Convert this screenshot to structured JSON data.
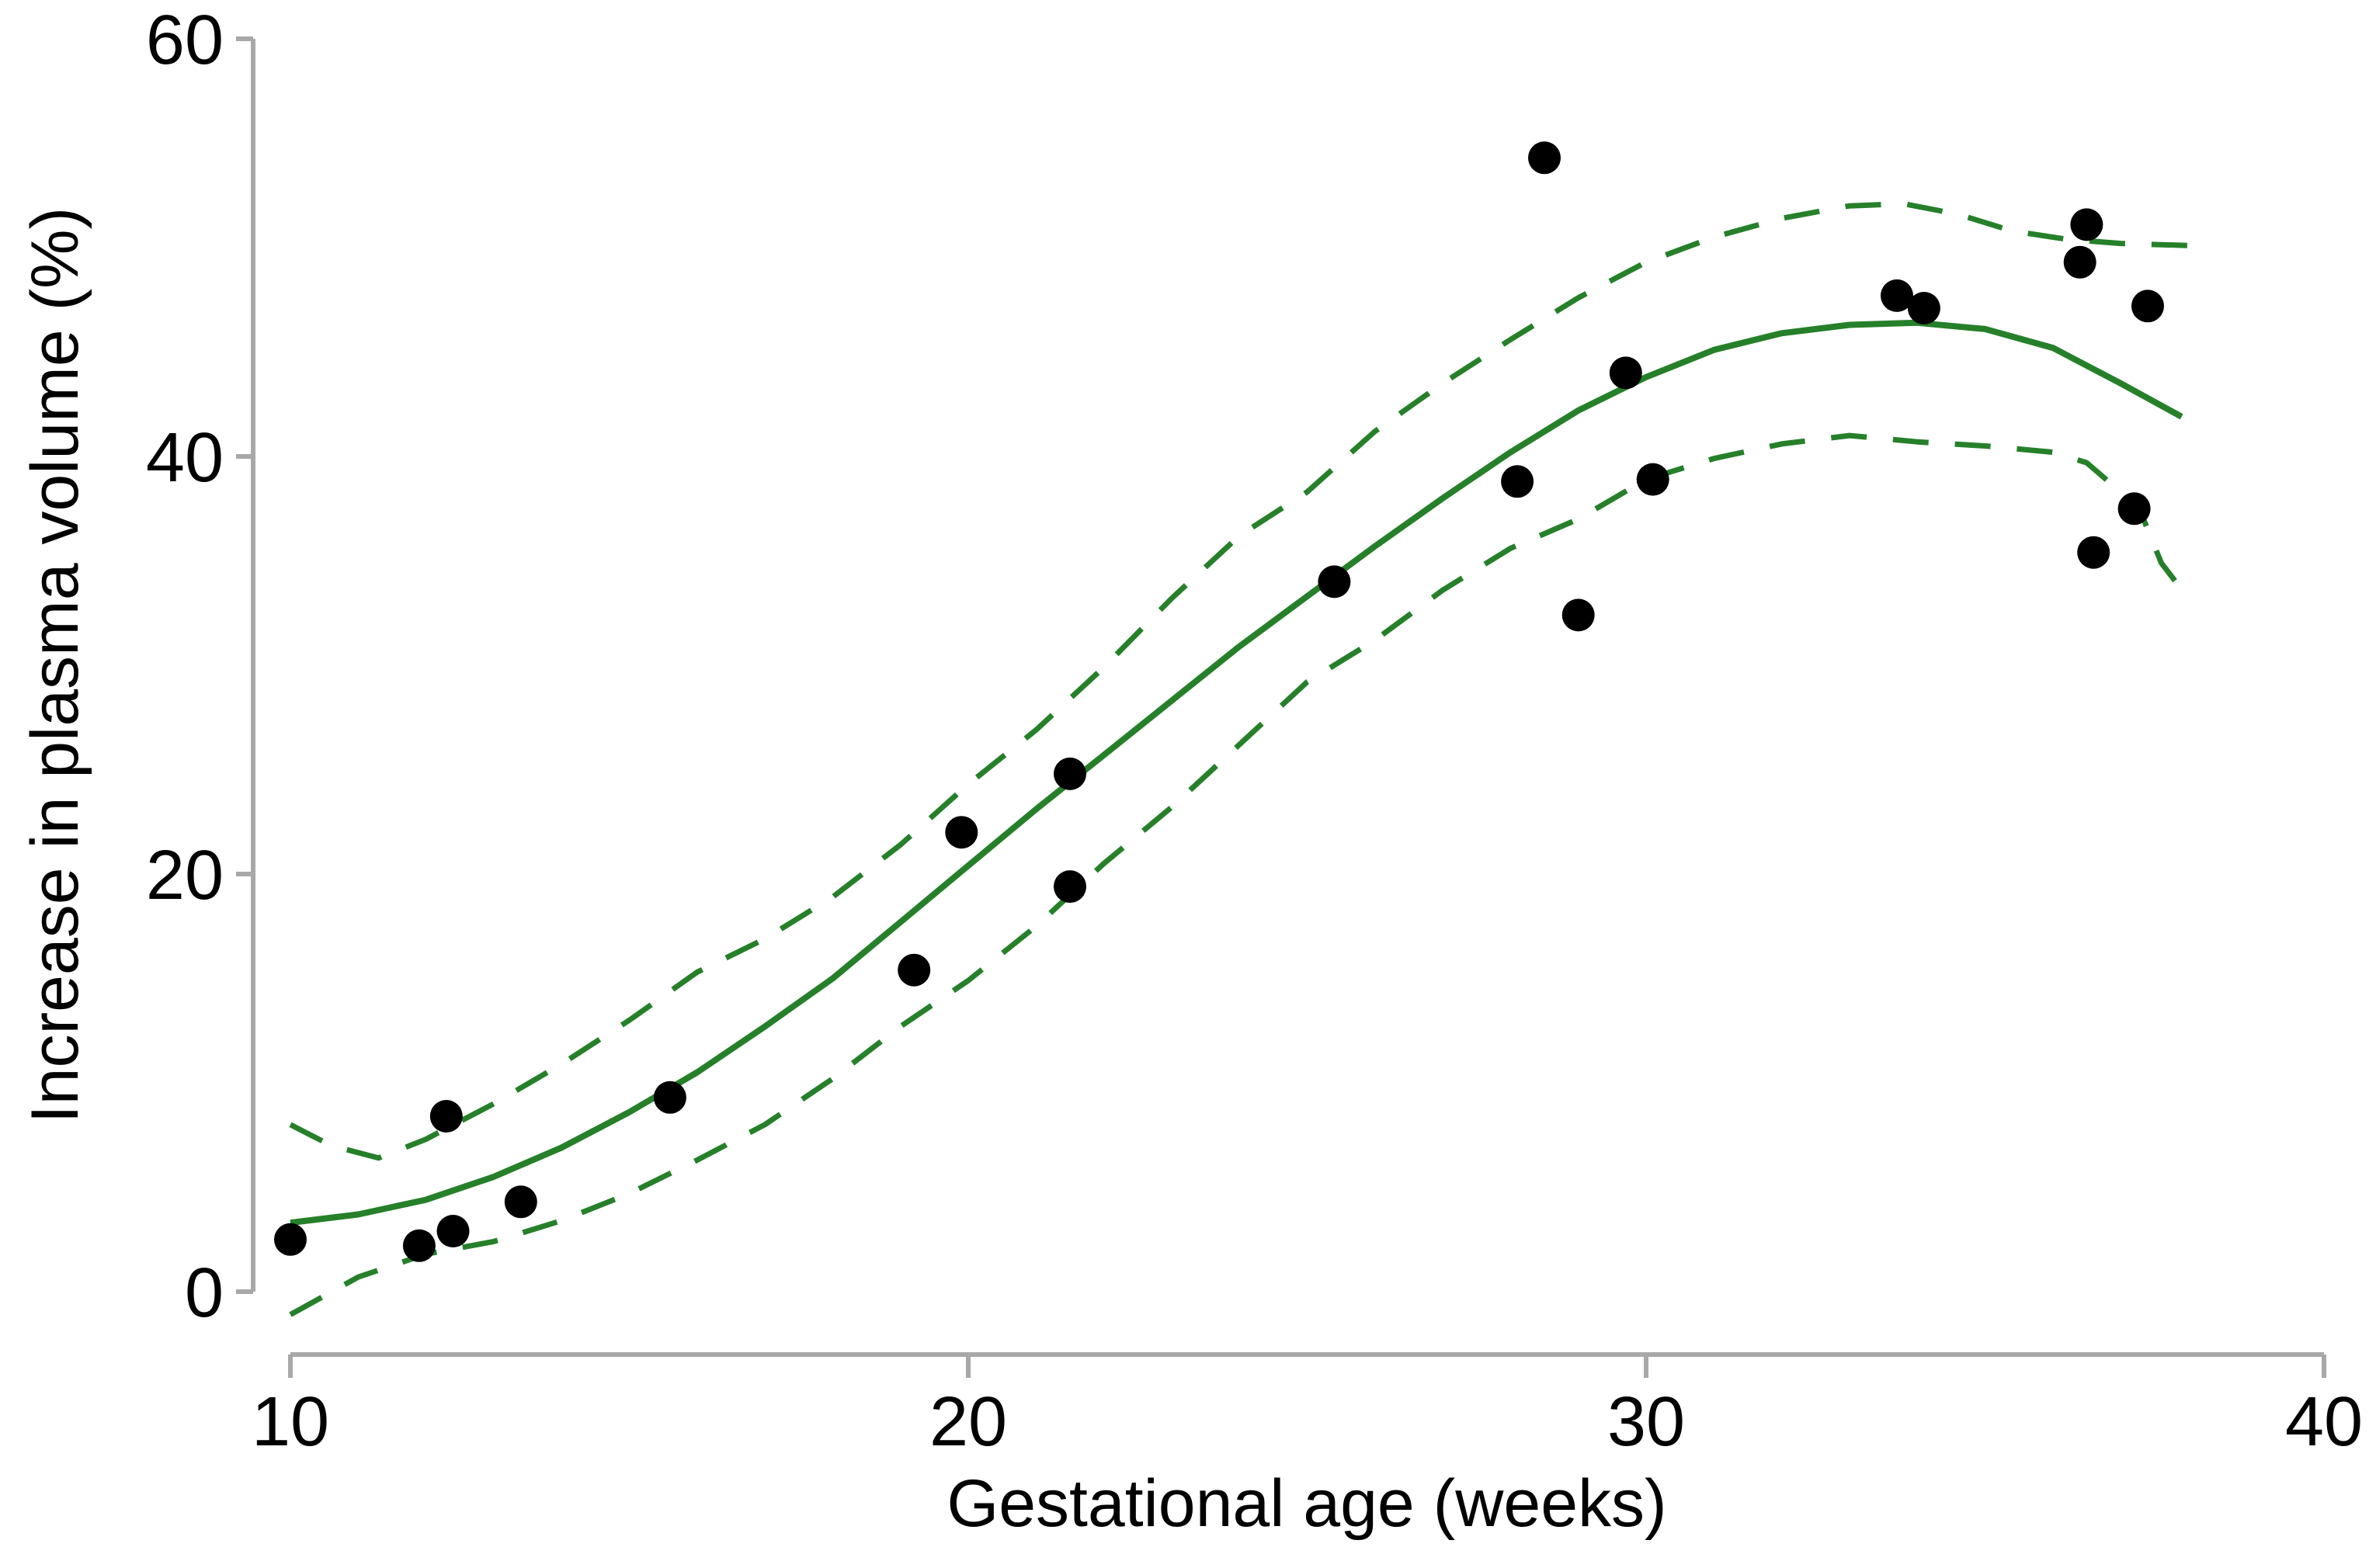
{
  "figure": {
    "background": "#ffffff"
  },
  "chart_data": {
    "type": "scatter",
    "title": "",
    "xlabel": "Gestational age (weeks)",
    "ylabel": "Increase in plasma volume (%)",
    "xlim": [
      10,
      40
    ],
    "ylim": [
      0,
      60
    ],
    "xticks": [
      10,
      20,
      30,
      40
    ],
    "yticks": [
      0,
      20,
      40,
      60
    ],
    "grid": false,
    "legend_position": "none",
    "colors": {
      "points": "#000000",
      "fitted": "#26802a",
      "confidence_band": "#26802a",
      "axis": "#a8a8a8",
      "text": "#000000"
    },
    "points": [
      [
        10.0,
        2.5
      ],
      [
        11.9,
        2.2
      ],
      [
        12.4,
        2.9
      ],
      [
        12.3,
        8.4
      ],
      [
        13.4,
        4.3
      ],
      [
        15.6,
        9.3
      ],
      [
        19.2,
        15.4
      ],
      [
        19.9,
        22.0
      ],
      [
        21.5,
        24.8
      ],
      [
        21.5,
        19.4
      ],
      [
        25.4,
        34.0
      ],
      [
        28.1,
        38.8
      ],
      [
        28.5,
        54.3
      ],
      [
        29.0,
        32.4
      ],
      [
        29.7,
        44.0
      ],
      [
        30.1,
        38.9
      ],
      [
        33.7,
        47.7
      ],
      [
        34.1,
        47.1
      ],
      [
        36.4,
        49.3
      ],
      [
        36.5,
        51.1
      ],
      [
        36.6,
        35.4
      ],
      [
        37.2,
        37.5
      ],
      [
        37.4,
        47.2
      ]
    ],
    "series": [
      {
        "name": "fitted-curve",
        "style": "solid",
        "x": [
          10,
          11,
          12,
          13,
          14,
          15,
          16,
          17,
          18,
          19,
          20,
          21,
          22,
          23,
          24,
          25,
          26,
          27,
          28,
          29,
          30,
          31,
          32,
          33,
          34,
          35,
          36,
          37,
          37.9
        ],
        "y": [
          3.3,
          3.7,
          4.4,
          5.5,
          6.9,
          8.6,
          10.5,
          12.7,
          15.0,
          17.7,
          20.4,
          23.1,
          25.7,
          28.3,
          30.9,
          33.3,
          35.7,
          38.0,
          40.2,
          42.2,
          43.8,
          45.1,
          45.9,
          46.3,
          46.4,
          46.1,
          45.2,
          43.5,
          41.9
        ]
      },
      {
        "name": "upper-confidence-band",
        "style": "dashed",
        "x": [
          10,
          10.6,
          11.3,
          12,
          13,
          14,
          15,
          16,
          17,
          18,
          19,
          20,
          21,
          22,
          23,
          24,
          25,
          26,
          27,
          28,
          29,
          30,
          31,
          32,
          33,
          33.8,
          34.6,
          35.4,
          36.2,
          37,
          38
        ],
        "y": [
          8.0,
          7.0,
          6.4,
          7.3,
          9.0,
          10.9,
          13.0,
          15.3,
          16.9,
          18.9,
          21.4,
          24.3,
          26.9,
          29.9,
          33.2,
          36.2,
          38.3,
          41.2,
          43.5,
          45.6,
          47.6,
          49.3,
          50.5,
          51.4,
          52.0,
          52.1,
          51.6,
          50.8,
          50.4,
          50.2,
          50.1
        ]
      },
      {
        "name": "lower-confidence-band",
        "style": "dashed",
        "x": [
          10,
          11,
          12,
          13,
          14,
          15,
          16,
          17,
          18,
          19,
          20,
          21,
          22,
          23,
          24,
          25,
          26,
          27,
          28,
          29,
          30,
          31,
          32,
          33,
          34,
          35,
          36,
          36.5,
          37,
          37.3,
          37.6,
          38
        ],
        "y": [
          -1.1,
          0.7,
          1.8,
          2.4,
          3.4,
          4.7,
          6.3,
          8.0,
          10.2,
          12.7,
          14.9,
          17.5,
          20.5,
          23.2,
          26.2,
          29.2,
          31.2,
          33.6,
          35.6,
          37.0,
          38.9,
          39.9,
          40.6,
          41.0,
          40.7,
          40.5,
          40.2,
          39.7,
          38.3,
          37.3,
          34.9,
          33.2
        ]
      }
    ]
  }
}
